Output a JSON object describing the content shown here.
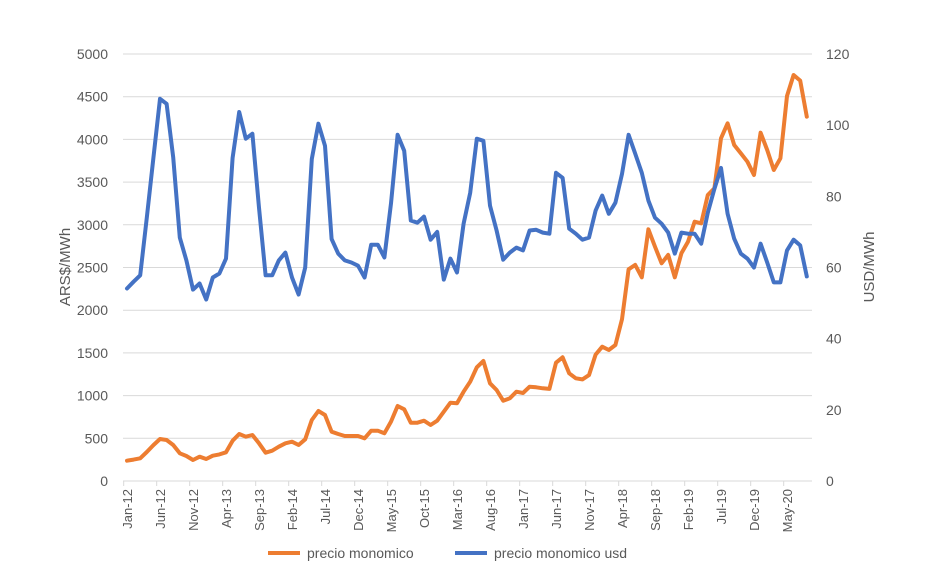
{
  "chart_data": {
    "type": "line",
    "title": "",
    "x_start": "Jan-12",
    "x_frequency": "monthly",
    "tick_labels": [
      "Jan-12",
      "Jun-12",
      "Nov-12",
      "Apr-13",
      "Sep-13",
      "Feb-14",
      "Jul-14",
      "Dec-14",
      "May-15",
      "Oct-15",
      "Mar-16",
      "Aug-16",
      "Jan-17",
      "Jun-17",
      "Nov-17",
      "Apr-18",
      "Sep-18",
      "Feb-19",
      "Jul-19",
      "Dec-19",
      "May-20"
    ],
    "ylabel_left": "ARS$/MWh",
    "ylabel_right": "USD/MWh",
    "ylim_left": [
      0,
      5000
    ],
    "ylim_right": [
      0,
      120
    ],
    "yticks_left": [
      "0",
      "500",
      "1000",
      "1500",
      "2000",
      "2500",
      "3000",
      "3500",
      "4000",
      "4500",
      "5000"
    ],
    "yticks_right": [
      "0",
      "20",
      "40",
      "60",
      "80",
      "100",
      "120"
    ],
    "grid": true,
    "legend_position": "bottom",
    "series": [
      {
        "name": "precio monomico",
        "axis": "left",
        "color": "#ED7D31",
        "values": [
          238,
          250,
          266,
          340,
          420,
          492,
          480,
          421,
          324,
          293,
          246,
          285,
          258,
          296,
          312,
          336,
          472,
          550,
          519,
          539,
          441,
          331,
          355,
          402,
          441,
          460,
          421,
          488,
          714,
          820,
          773,
          577,
          550,
          527,
          527,
          527,
          500,
          589,
          589,
          558,
          695,
          878,
          840,
          683,
          683,
          706,
          656,
          706,
          812,
          917,
          910,
          1046,
          1163,
          1331,
          1405,
          1144,
          1066,
          940,
          968,
          1046,
          1030,
          1104,
          1097,
          1085,
          1078,
          1385,
          1448,
          1261,
          1203,
          1190,
          1240,
          1480,
          1573,
          1534,
          1593,
          1893,
          2479,
          2530,
          2385,
          2947,
          2744,
          2549,
          2647,
          2385,
          2666,
          2802,
          3036,
          3017,
          3349,
          3427,
          4013,
          4189,
          3935,
          3837,
          3739,
          3583,
          4079,
          3876,
          3642,
          3779,
          4508,
          4754,
          4688,
          4266
        ]
      },
      {
        "name": "precio monomico usd",
        "axis": "right",
        "color": "#4472C4",
        "values": [
          54.1,
          56,
          57.8,
          74,
          90.8,
          107.4,
          106,
          91,
          68.4,
          62,
          53.8,
          55.5,
          51,
          57.2,
          58.3,
          62.5,
          90.8,
          103.7,
          96.2,
          97.6,
          76.8,
          57.8,
          57.8,
          62,
          64.2,
          57.2,
          52.4,
          60,
          90.5,
          100.4,
          94.2,
          68,
          63.9,
          62,
          61.4,
          60.5,
          57.2,
          66.4,
          66.4,
          62.8,
          78,
          97.3,
          92.8,
          73.2,
          72.6,
          74.3,
          67.8,
          70,
          56.6,
          62.5,
          58.6,
          72.3,
          81,
          96.2,
          95.6,
          77.4,
          70.4,
          62.2,
          64.2,
          65.6,
          64.8,
          70.4,
          70.6,
          69.8,
          69.5,
          86.6,
          85.2,
          70.9,
          69.5,
          67.8,
          68.4,
          76,
          80.2,
          75.1,
          78.2,
          86.3,
          97.3,
          92,
          86.6,
          78.8,
          74,
          72.3,
          69.8,
          63.9,
          69.8,
          69.5,
          69.5,
          66.7,
          75.4,
          82.1,
          88,
          75.1,
          68.1,
          63.9,
          62.5,
          60,
          66.7,
          61.4,
          55.8,
          55.8,
          64.8,
          67.8,
          66.2,
          57.5
        ]
      }
    ]
  }
}
